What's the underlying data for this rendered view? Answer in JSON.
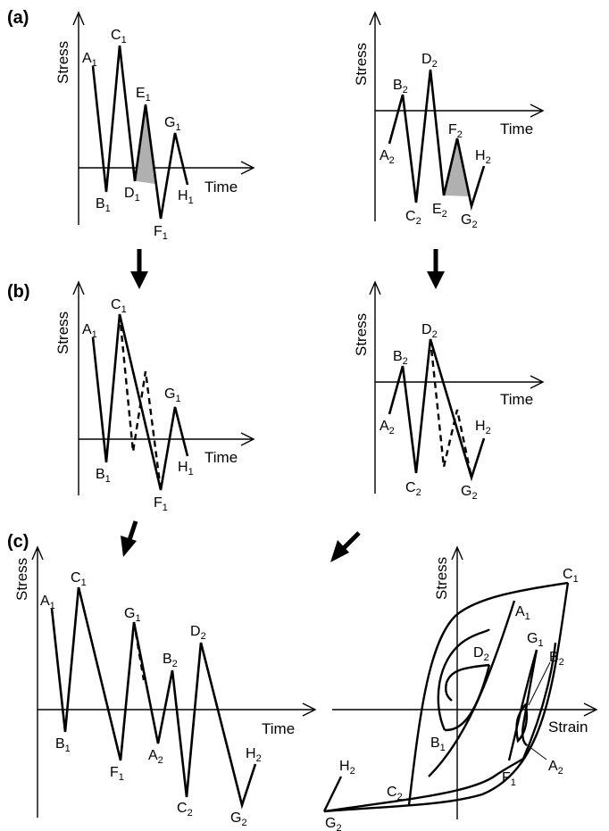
{
  "panels": {
    "a": "(a)",
    "b": "(b)",
    "c": "(c)"
  },
  "axes": {
    "stress": "Stress",
    "time": "Time",
    "strain": "Strain"
  },
  "points": {
    "A1": [
      "A",
      "1"
    ],
    "B1": [
      "B",
      "1"
    ],
    "C1": [
      "C",
      "1"
    ],
    "D1": [
      "D",
      "1"
    ],
    "E1": [
      "E",
      "1"
    ],
    "F1": [
      "F",
      "1"
    ],
    "G1": [
      "G",
      "1"
    ],
    "H1": [
      "H",
      "1"
    ],
    "A2": [
      "A",
      "2"
    ],
    "B2": [
      "B",
      "2"
    ],
    "C2": [
      "C",
      "2"
    ],
    "D2": [
      "D",
      "2"
    ],
    "E2": [
      "E",
      "2"
    ],
    "F2": [
      "F",
      "2"
    ],
    "G2": [
      "G",
      "2"
    ],
    "H2": [
      "H",
      "2"
    ]
  }
}
